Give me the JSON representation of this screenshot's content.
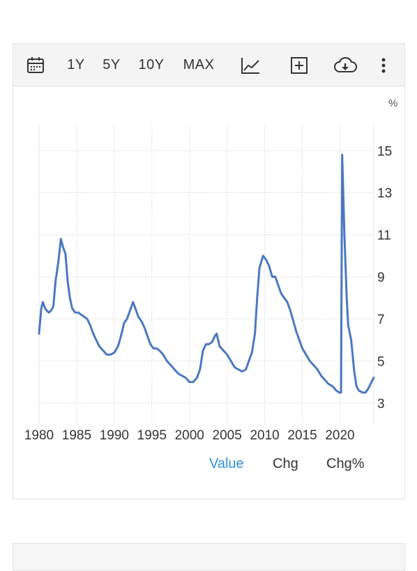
{
  "toolbar": {
    "ranges": [
      "1Y",
      "5Y",
      "10Y",
      "MAX"
    ]
  },
  "tabs": [
    {
      "label": "Value",
      "active": true
    },
    {
      "label": "Chg",
      "active": false
    },
    {
      "label": "Chg%",
      "active": false
    }
  ],
  "colors": {
    "line": "#4a78c0",
    "active_tab": "#2f8fe0",
    "grid": "#dddddd"
  },
  "chart_data": {
    "type": "line",
    "title": "",
    "xlabel": "",
    "ylabel": "%",
    "xlim": [
      1980,
      2024.5
    ],
    "ylim": [
      2,
      16.2
    ],
    "y_ticks": [
      3,
      5,
      7,
      9,
      11,
      13,
      15
    ],
    "x_ticks": [
      1980,
      1985,
      1990,
      1995,
      2000,
      2005,
      2010,
      2015,
      2020
    ],
    "grid": true,
    "series": [
      {
        "name": "",
        "points": [
          [
            1980.0,
            6.3
          ],
          [
            1980.3,
            7.5
          ],
          [
            1980.5,
            7.8
          ],
          [
            1980.8,
            7.5
          ],
          [
            1981.0,
            7.4
          ],
          [
            1981.3,
            7.3
          ],
          [
            1981.6,
            7.4
          ],
          [
            1981.9,
            7.6
          ],
          [
            1982.2,
            8.8
          ],
          [
            1982.6,
            9.8
          ],
          [
            1982.9,
            10.8
          ],
          [
            1983.2,
            10.4
          ],
          [
            1983.5,
            10.1
          ],
          [
            1983.8,
            8.8
          ],
          [
            1984.1,
            8.0
          ],
          [
            1984.4,
            7.5
          ],
          [
            1984.8,
            7.3
          ],
          [
            1985.2,
            7.3
          ],
          [
            1985.6,
            7.2
          ],
          [
            1986.0,
            7.1
          ],
          [
            1986.4,
            7.0
          ],
          [
            1986.8,
            6.7
          ],
          [
            1987.2,
            6.3
          ],
          [
            1987.6,
            6.0
          ],
          [
            1988.0,
            5.7
          ],
          [
            1988.5,
            5.5
          ],
          [
            1989.0,
            5.3
          ],
          [
            1989.5,
            5.3
          ],
          [
            1990.0,
            5.4
          ],
          [
            1990.5,
            5.7
          ],
          [
            1990.9,
            6.2
          ],
          [
            1991.3,
            6.8
          ],
          [
            1991.7,
            7.0
          ],
          [
            1992.0,
            7.3
          ],
          [
            1992.3,
            7.6
          ],
          [
            1992.5,
            7.8
          ],
          [
            1992.8,
            7.5
          ],
          [
            1993.2,
            7.1
          ],
          [
            1993.6,
            6.9
          ],
          [
            1994.0,
            6.6
          ],
          [
            1994.4,
            6.2
          ],
          [
            1994.8,
            5.8
          ],
          [
            1995.2,
            5.6
          ],
          [
            1995.6,
            5.6
          ],
          [
            1996.0,
            5.5
          ],
          [
            1996.5,
            5.3
          ],
          [
            1997.0,
            5.0
          ],
          [
            1997.5,
            4.8
          ],
          [
            1998.0,
            4.6
          ],
          [
            1998.5,
            4.4
          ],
          [
            1999.0,
            4.3
          ],
          [
            1999.5,
            4.2
          ],
          [
            2000.0,
            4.0
          ],
          [
            2000.5,
            4.0
          ],
          [
            2001.0,
            4.2
          ],
          [
            2001.4,
            4.6
          ],
          [
            2001.8,
            5.5
          ],
          [
            2002.2,
            5.8
          ],
          [
            2002.6,
            5.8
          ],
          [
            2003.0,
            5.9
          ],
          [
            2003.4,
            6.2
          ],
          [
            2003.6,
            6.3
          ],
          [
            2004.0,
            5.7
          ],
          [
            2004.5,
            5.5
          ],
          [
            2005.0,
            5.3
          ],
          [
            2005.5,
            5.0
          ],
          [
            2006.0,
            4.7
          ],
          [
            2006.5,
            4.6
          ],
          [
            2007.0,
            4.5
          ],
          [
            2007.5,
            4.6
          ],
          [
            2007.9,
            5.0
          ],
          [
            2008.3,
            5.4
          ],
          [
            2008.7,
            6.3
          ],
          [
            2009.0,
            8.0
          ],
          [
            2009.3,
            9.4
          ],
          [
            2009.6,
            9.8
          ],
          [
            2009.8,
            10.0
          ],
          [
            2010.2,
            9.8
          ],
          [
            2010.6,
            9.5
          ],
          [
            2011.0,
            9.0
          ],
          [
            2011.4,
            9.0
          ],
          [
            2011.8,
            8.6
          ],
          [
            2012.2,
            8.2
          ],
          [
            2012.6,
            8.0
          ],
          [
            2013.0,
            7.8
          ],
          [
            2013.4,
            7.4
          ],
          [
            2013.8,
            6.9
          ],
          [
            2014.2,
            6.4
          ],
          [
            2014.6,
            6.0
          ],
          [
            2015.0,
            5.6
          ],
          [
            2015.5,
            5.3
          ],
          [
            2016.0,
            5.0
          ],
          [
            2016.5,
            4.8
          ],
          [
            2017.0,
            4.6
          ],
          [
            2017.5,
            4.3
          ],
          [
            2018.0,
            4.1
          ],
          [
            2018.5,
            3.9
          ],
          [
            2019.0,
            3.8
          ],
          [
            2019.5,
            3.6
          ],
          [
            2019.9,
            3.5
          ],
          [
            2020.15,
            3.5
          ],
          [
            2020.3,
            14.8
          ],
          [
            2020.6,
            11.0
          ],
          [
            2020.9,
            8.0
          ],
          [
            2021.1,
            6.7
          ],
          [
            2021.5,
            6.0
          ],
          [
            2021.9,
            4.5
          ],
          [
            2022.2,
            3.8
          ],
          [
            2022.5,
            3.6
          ],
          [
            2023.0,
            3.5
          ],
          [
            2023.4,
            3.5
          ],
          [
            2023.8,
            3.7
          ],
          [
            2024.2,
            4.0
          ],
          [
            2024.5,
            4.2
          ]
        ]
      }
    ]
  }
}
